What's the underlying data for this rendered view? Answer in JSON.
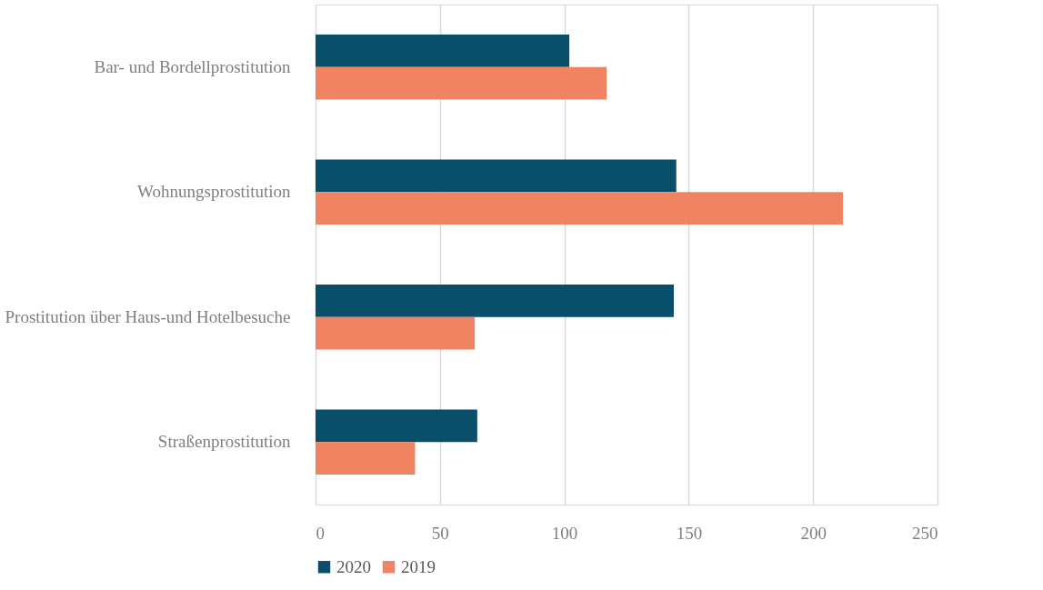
{
  "chart_data": {
    "type": "bar",
    "orientation": "horizontal",
    "categories": [
      "Bar- und Bordellprostitution",
      "Wohnungsprostitution",
      "Prostitution über Haus-und Hotelbesuche",
      "Straßenprostitution"
    ],
    "series": [
      {
        "name": "2020",
        "color": "#0a4f6a",
        "values": [
          102,
          145,
          144,
          65
        ]
      },
      {
        "name": "2019",
        "color": "#f08462",
        "values": [
          117,
          212,
          64,
          40
        ]
      }
    ],
    "xlim": [
      0,
      250
    ],
    "xticks": [
      0,
      50,
      100,
      150,
      200,
      250
    ],
    "grid": "x",
    "legend": "bottom"
  }
}
